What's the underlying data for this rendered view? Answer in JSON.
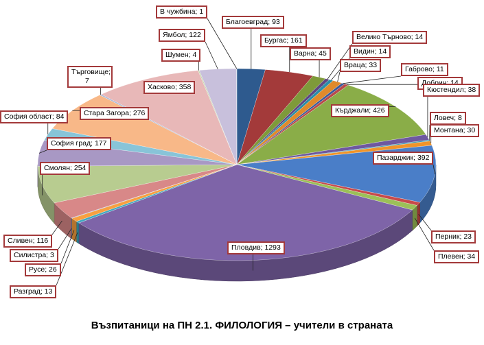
{
  "chart_data": {
    "type": "pie",
    "title": "Възпитаници на ПН 2.1. ФИЛОЛОГИЯ – учители в страната",
    "categories": [
      "Благоевград",
      "Бургас",
      "Варна",
      "Велико Търново",
      "Видин",
      "Враца",
      "Габрово",
      "Добрич",
      "Кърджали",
      "Кюстендил",
      "Ловеч",
      "Монтана",
      "Пазарджик",
      "Перник",
      "Плевен",
      "Пловдив",
      "Разград",
      "Русе",
      "Силистра",
      "Сливен",
      "Смолян",
      "София град",
      "София област",
      "Стара Загора",
      "Търговище",
      "Хасково",
      "Шумен",
      "Ямбол",
      "В чужбина"
    ],
    "values": [
      93,
      161,
      45,
      14,
      14,
      33,
      11,
      14,
      426,
      38,
      8,
      30,
      392,
      23,
      34,
      1293,
      13,
      26,
      3,
      116,
      254,
      177,
      84,
      276,
      7,
      358,
      4,
      122,
      1
    ],
    "labels": [
      "Благоевград; 93",
      "Бургас; 161",
      "Варна; 45",
      "Велико Търново; 14",
      "Видин; 14",
      "Враца; 33",
      "Габрово; 11",
      "Добрич; 14",
      "Кърджали; 426",
      "Кюстендил; 38",
      "Ловеч; 8",
      "Монтана; 30",
      "Пазарджик; 392",
      "Перник; 23",
      "Плевен; 34",
      "Пловдив; 1293",
      "Разград; 13",
      "Русе; 26",
      "Силистра; 3",
      "Сливен; 116",
      "Смолян; 254",
      "София град; 177",
      "София област; 84",
      "Стара Загора; 276",
      "Търговище; 7",
      "Хасково; 358",
      "Шумен; 4",
      "Ямбол; 122",
      "В чужбина; 1"
    ],
    "colors": [
      "#2e5a8e",
      "#a33a3a",
      "#7e9a3a",
      "#5e4682",
      "#2a8ea8",
      "#e08a2a",
      "#3a5a9a",
      "#b84a4a",
      "#8aad48",
      "#6e58a0",
      "#3a9ab0",
      "#f0942a",
      "#4a7ec8",
      "#c84a4a",
      "#9cc058",
      "#7e64a8",
      "#40a8c0",
      "#f8a040",
      "#7892cc",
      "#d88888",
      "#b8cc90",
      "#a898c4",
      "#88c4d8",
      "#f8b888",
      "#a8b8d8",
      "#e8b8b8",
      "#c8d8b0",
      "#c8c0dc",
      "#b0dce8"
    ]
  }
}
